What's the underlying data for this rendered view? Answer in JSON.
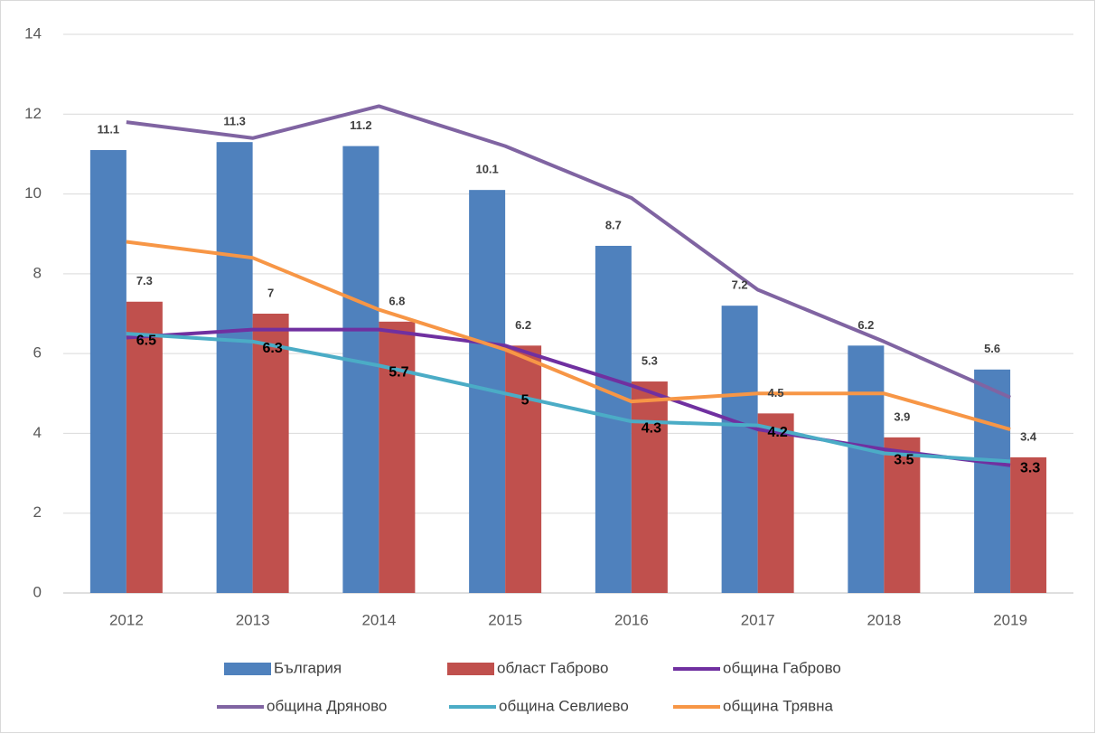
{
  "chart_data": {
    "type": "bar_line",
    "categories": [
      "2012",
      "2013",
      "2014",
      "2015",
      "2016",
      "2017",
      "2018",
      "2019"
    ],
    "ylim": [
      0,
      14
    ],
    "yticks": [
      0,
      2,
      4,
      6,
      8,
      10,
      12,
      14
    ],
    "grid": true,
    "series": [
      {
        "name": "България",
        "kind": "bar",
        "color": "#4f81bd",
        "data_labels": true,
        "values": [
          11.1,
          11.3,
          11.2,
          10.1,
          8.7,
          7.2,
          6.2,
          5.6
        ]
      },
      {
        "name": "област Габрово",
        "kind": "bar",
        "color": "#c0504d",
        "data_labels": true,
        "values": [
          7.3,
          7,
          6.8,
          6.2,
          5.3,
          4.5,
          3.9,
          3.4
        ]
      },
      {
        "name": "община Габрово",
        "kind": "line",
        "color": "#7030a0",
        "data_labels": false,
        "values": [
          6.4,
          6.6,
          6.6,
          6.2,
          5.2,
          4.1,
          3.6,
          3.2
        ]
      },
      {
        "name": "община Дряново",
        "kind": "line",
        "color": "#8064a2",
        "data_labels": false,
        "values": [
          11.8,
          11.4,
          12.2,
          11.2,
          9.9,
          7.6,
          6.3,
          4.9
        ]
      },
      {
        "name": "община Севлиево",
        "kind": "line",
        "color": "#4bacc6",
        "data_labels": true,
        "values": [
          6.5,
          6.3,
          5.7,
          5,
          4.3,
          4.2,
          3.5,
          3.3
        ]
      },
      {
        "name": "община Трявна",
        "kind": "line",
        "color": "#f79646",
        "data_labels": false,
        "values": [
          8.8,
          8.4,
          7.1,
          6.1,
          4.8,
          5,
          5,
          4.1
        ]
      }
    ]
  }
}
